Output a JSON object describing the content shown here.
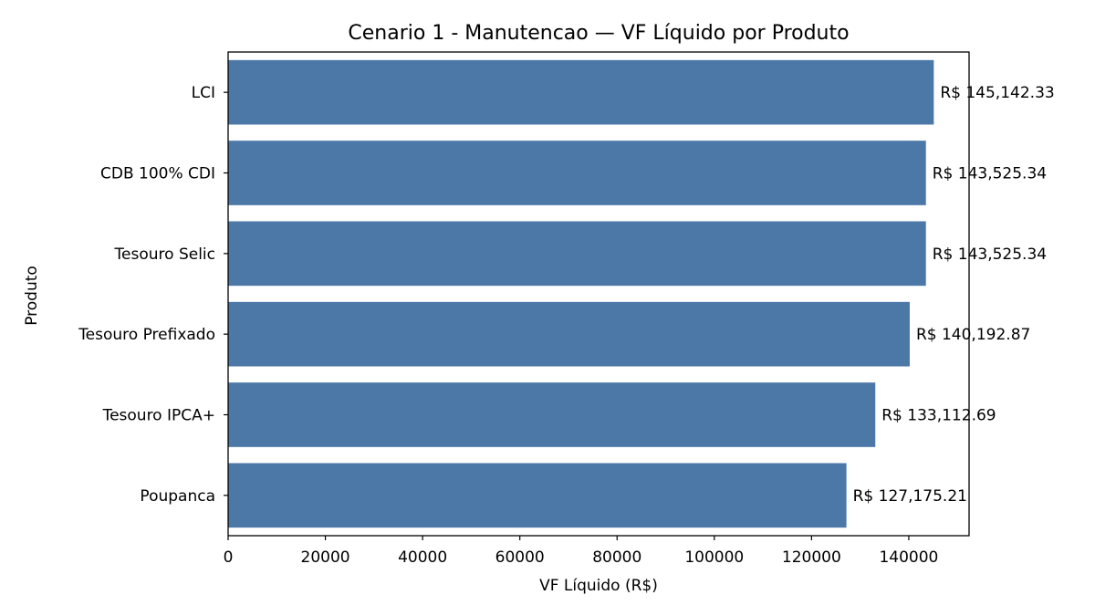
{
  "chart_data": {
    "type": "bar",
    "orientation": "horizontal",
    "title": "Cenario 1 - Manutencao — VF Líquido por Produto",
    "xlabel": "VF Líquido (R$)",
    "ylabel": "Produto",
    "categories": [
      "LCI",
      "CDB 100% CDI",
      "Tesouro Selic",
      "Tesouro Prefixado",
      "Tesouro IPCA+",
      "Poupanca"
    ],
    "values": [
      145142.33,
      143525.34,
      143525.34,
      140192.87,
      133112.69,
      127175.21
    ],
    "value_labels": [
      "R$ 145,142.33",
      "R$ 143,525.34",
      "R$ 143,525.34",
      "R$ 140,192.87",
      "R$ 133,112.69",
      "R$ 127,175.21"
    ],
    "xlim": [
      0,
      152399
    ],
    "xticks": [
      0,
      20000,
      40000,
      60000,
      80000,
      100000,
      120000,
      140000
    ],
    "xtick_labels": [
      "0",
      "20000",
      "40000",
      "60000",
      "80000",
      "100000",
      "120000",
      "140000"
    ],
    "bar_color": "#4c78a8",
    "grid": false,
    "legend": "none"
  }
}
